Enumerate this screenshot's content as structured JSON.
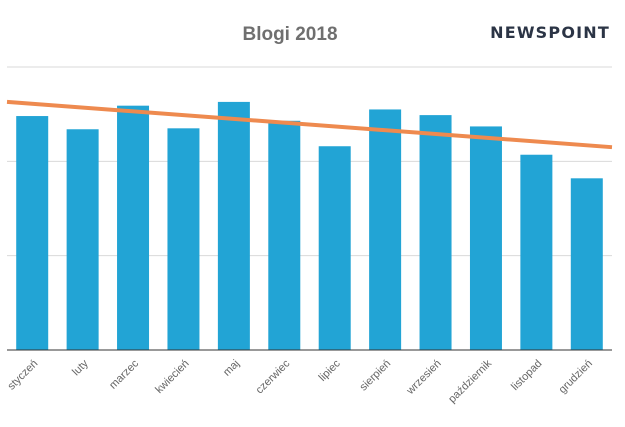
{
  "brand": {
    "logo_text": "NEWSPOINT"
  },
  "chart_data": {
    "type": "bar",
    "title": "Blogi 2018",
    "xlabel": "",
    "ylabel": "",
    "categories": [
      "styczeń",
      "luty",
      "marzec",
      "kwiecień",
      "maj",
      "czerwiec",
      "lipiec",
      "sierpień",
      "wrzesień",
      "październik",
      "listopad",
      "grudzień"
    ],
    "series": [
      {
        "values": [
          2.48,
          2.34,
          2.59,
          2.35,
          2.63,
          2.43,
          2.16,
          2.55,
          2.49,
          2.37,
          2.07,
          1.82
        ]
      }
    ],
    "trendline": {
      "type": "linear",
      "start": 2.63,
      "end": 2.15
    },
    "ylim": [
      0,
      3
    ],
    "grid": true,
    "y_tick_labels_shown": false,
    "legend": "none",
    "colors": {
      "bar": "#22a4d5",
      "trend": "#ee8a4f",
      "grid": "#d9d9d9",
      "axis": "#333333",
      "title": "#6f6f6f",
      "logo": "#2b3445"
    }
  }
}
